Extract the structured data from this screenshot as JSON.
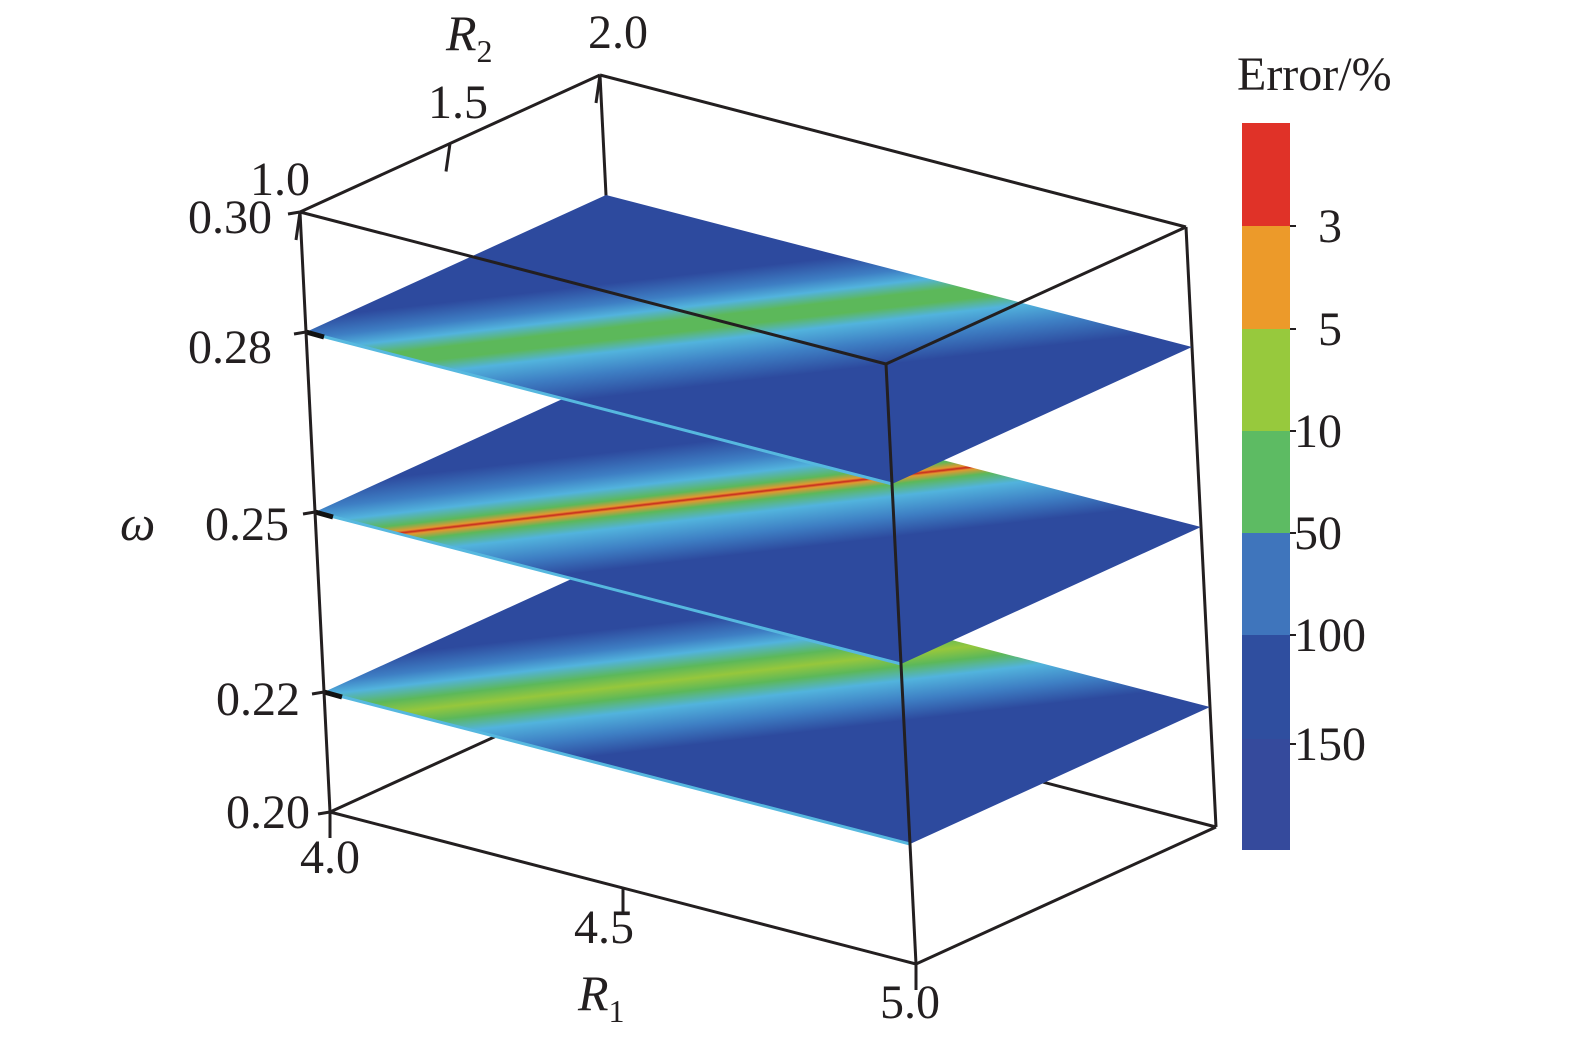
{
  "chart_data": {
    "type": "heatmap",
    "title": "",
    "axes": {
      "x": {
        "label": "R",
        "label_sub": "1",
        "range": [
          4.0,
          5.0
        ],
        "ticks": [
          "4.0",
          "4.5",
          "5.0"
        ]
      },
      "y": {
        "label": "R",
        "label_sub": "2",
        "range": [
          1.0,
          2.0
        ],
        "ticks": [
          "1.0",
          "1.5",
          "2.0"
        ]
      },
      "z": {
        "label": "ω",
        "range": [
          0.2,
          0.3
        ],
        "ticks": [
          "0.20",
          "0.22",
          "0.25",
          "0.28",
          "0.30"
        ]
      }
    },
    "slices": [
      {
        "omega": 0.22,
        "omega_label": "0.22",
        "min_error_band": "5"
      },
      {
        "omega": 0.25,
        "omega_label": "0.25",
        "min_error_band": "3"
      },
      {
        "omega": 0.28,
        "omega_label": "0.28",
        "min_error_band": "10"
      }
    ],
    "colorbar": {
      "title": "Error/%",
      "labels": [
        "3",
        "5",
        "10",
        "50",
        "100",
        "150"
      ],
      "colors": [
        "#e03228",
        "#ec9a2a",
        "#97c93d",
        "#5dbb63",
        "#3f75bc",
        "#2f4e9f",
        "#354a9c"
      ]
    },
    "grid": false,
    "legend": "colorbar-right"
  }
}
